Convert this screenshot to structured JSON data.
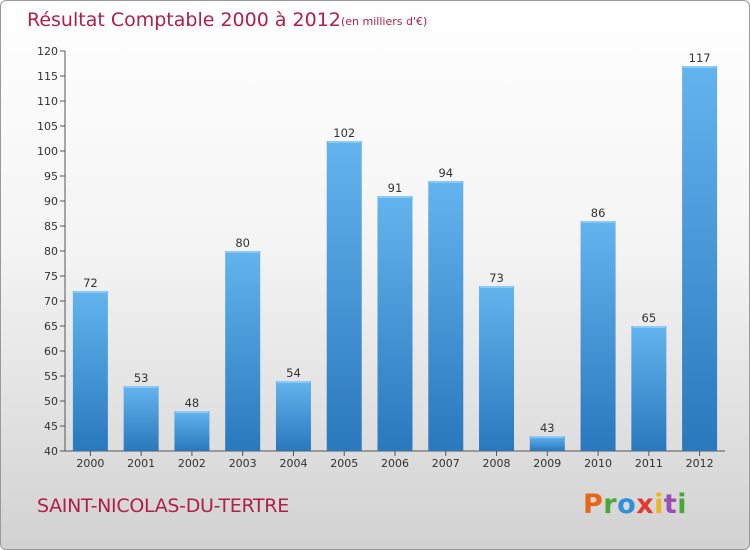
{
  "chart_data": {
    "type": "bar",
    "title": "Résultat Comptable 2000 à 2012",
    "subtitle": "(en milliers d'€)",
    "categories": [
      "2000",
      "2001",
      "2002",
      "2003",
      "2004",
      "2005",
      "2006",
      "2007",
      "2008",
      "2009",
      "2010",
      "2011",
      "2012"
    ],
    "values": [
      72,
      53,
      48,
      80,
      54,
      102,
      91,
      94,
      73,
      43,
      86,
      65,
      117
    ],
    "ylim": [
      40,
      120
    ],
    "yticks": [
      40,
      45,
      50,
      55,
      60,
      65,
      70,
      75,
      80,
      85,
      90,
      95,
      100,
      105,
      110,
      115,
      120
    ],
    "grid": false,
    "bar_color": "#4a9ee0"
  },
  "footer": {
    "commune": "SAINT-NICOLAS-DU-TERTRE",
    "logo": "Proxiti",
    "logo_colors": [
      "#e8651a",
      "#4aa63a",
      "#2f8fd8",
      "#e23a2f",
      "#f0b323",
      "#9b4fb3",
      "#4aa63a"
    ]
  }
}
